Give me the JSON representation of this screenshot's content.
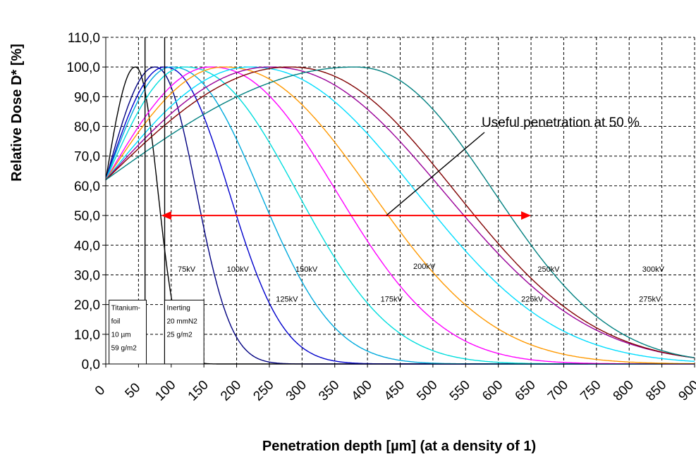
{
  "chart_data": {
    "type": "line",
    "title": "",
    "xlabel": "Penetration depth [µm]  (at a density of 1)",
    "ylabel": "Relative Dose D* [%]",
    "xlim": [
      0,
      900
    ],
    "ylim": [
      0,
      110
    ],
    "x_ticks": [
      0,
      50,
      100,
      150,
      200,
      250,
      300,
      350,
      400,
      450,
      500,
      550,
      600,
      650,
      700,
      750,
      800,
      850,
      900
    ],
    "x_tick_labels": [
      "0",
      "50",
      "100",
      "150",
      "200",
      "250",
      "300",
      "350",
      "400",
      "450",
      "500",
      "550",
      "600",
      "650",
      "700",
      "750",
      "800",
      "850",
      "900"
    ],
    "y_ticks": [
      0,
      10,
      20,
      30,
      40,
      50,
      60,
      70,
      80,
      90,
      100,
      110
    ],
    "y_tick_labels": [
      "0,0",
      "10,0",
      "20,0",
      "30,0",
      "40,0",
      "50,0",
      "60,0",
      "70,0",
      "80,0",
      "90,0",
      "100,0",
      "110,0"
    ],
    "grid": true,
    "series": [
      {
        "name": "",
        "color": "#000000",
        "peak_x": 45,
        "end_x": 130
      },
      {
        "name": "75kV",
        "color": "#000080",
        "peak_x": 75,
        "end_x": 230,
        "label": "75kV",
        "label_x": 110,
        "label_y": 31
      },
      {
        "name": "100kV",
        "color": "#0000CC",
        "peak_x": 90,
        "end_x": 330,
        "label": "100kV",
        "label_x": 185,
        "label_y": 31
      },
      {
        "name": "125kV",
        "color": "#00AADD",
        "peak_x": 100,
        "end_x": 430,
        "label": "125kV",
        "label_x": 260,
        "label_y": 21
      },
      {
        "name": "150kV",
        "color": "#00DDDD",
        "peak_x": 120,
        "end_x": 540,
        "label": "150kV",
        "label_x": 290,
        "label_y": 31
      },
      {
        "name": "175kV",
        "color": "#FF00FF",
        "peak_x": 160,
        "end_x": 630,
        "label": "175kV",
        "label_x": 420,
        "label_y": 21
      },
      {
        "name": "200kV",
        "color": "#FF9900",
        "peak_x": 180,
        "end_x": 730,
        "label": "200kV",
        "label_x": 470,
        "label_y": 32
      },
      {
        "name": "225kV",
        "color": "#00DDFF",
        "peak_x": 220,
        "end_x": 840,
        "label": "225kV",
        "label_x": 635,
        "label_y": 21
      },
      {
        "name": "250kV",
        "color": "#990099",
        "peak_x": 250,
        "end_x": 900,
        "label": "250kV",
        "label_x": 660,
        "label_y": 31
      },
      {
        "name": "275kV",
        "color": "#800000",
        "peak_x": 280,
        "end_x": 900,
        "label": "275kV",
        "label_x": 815,
        "label_y": 21
      },
      {
        "name": "300kV",
        "color": "#008080",
        "peak_x": 380,
        "end_x": 900,
        "label": "300kV",
        "label_x": 820,
        "label_y": 31
      }
    ],
    "annotations": [
      {
        "text": "Useful penetration at 50 %"
      },
      {
        "box": "Titanium",
        "lines": [
          "Titanium-",
          "foil",
          "10 µm",
          "59 g/m2"
        ]
      },
      {
        "box": "Inerting",
        "lines": [
          "Inerting",
          "20 mmN2",
          "25 g/m2"
        ]
      }
    ],
    "arrow": {
      "from_x": 85,
      "to_x": 650,
      "y": 50,
      "color": "#FF0000"
    }
  }
}
